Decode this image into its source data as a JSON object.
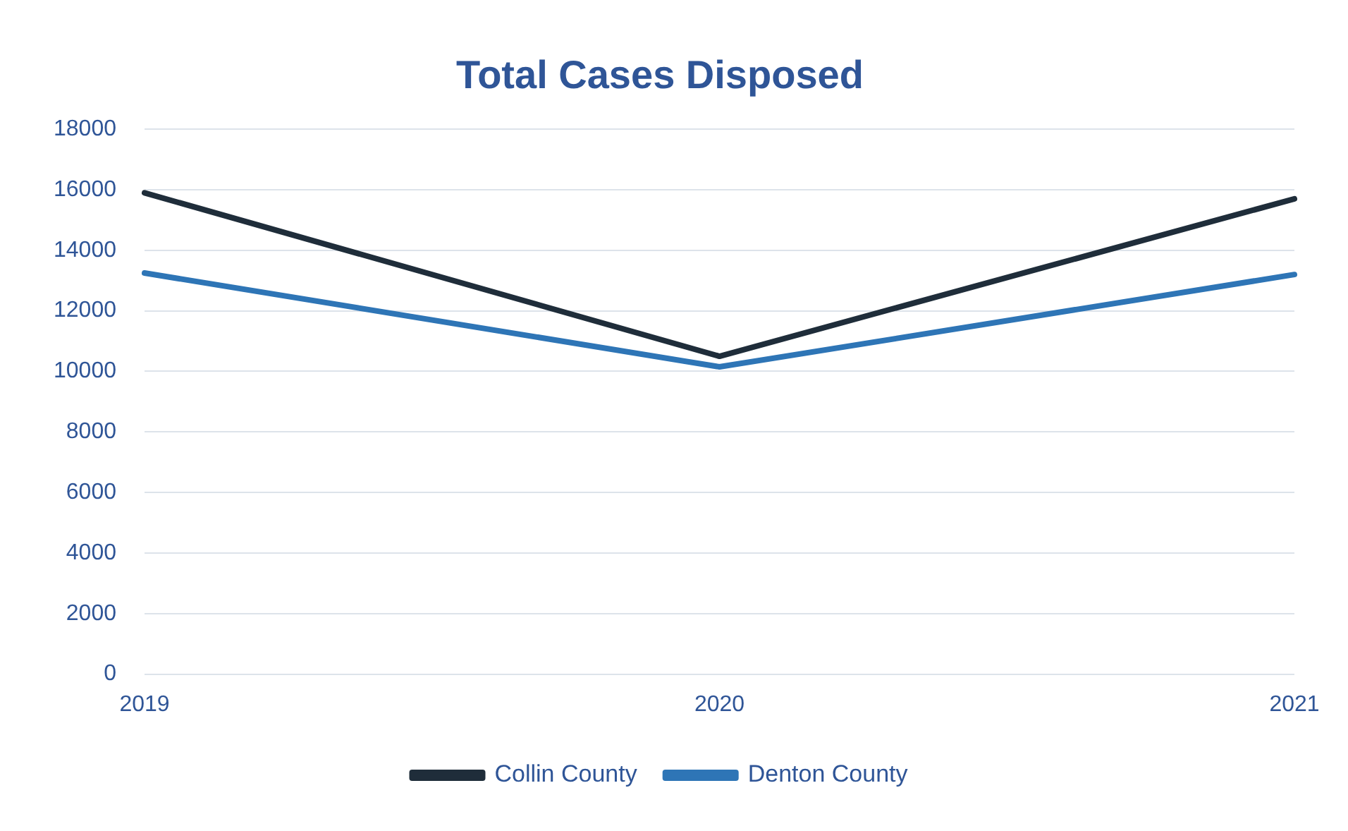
{
  "chart_data": {
    "type": "line",
    "title": "Total Cases Disposed",
    "categories": [
      "2019",
      "2020",
      "2021"
    ],
    "series": [
      {
        "name": "Collin County",
        "color": "#1f2d3a",
        "values": [
          15900,
          10500,
          15700
        ]
      },
      {
        "name": "Denton County",
        "color": "#2e75b6",
        "values": [
          13250,
          10150,
          13200
        ]
      }
    ],
    "ylim": [
      0,
      18000
    ],
    "yticks": [
      0,
      2000,
      4000,
      6000,
      8000,
      10000,
      12000,
      14000,
      16000,
      18000
    ],
    "grid": "y",
    "legend": "bottom",
    "marker": "none"
  }
}
